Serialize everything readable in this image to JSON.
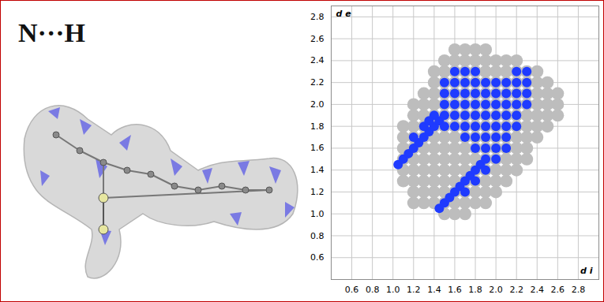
{
  "chart_data": {
    "type": "scatter",
    "title": "N···H",
    "x_label": "d i",
    "y_label": "d e",
    "xlim": [
      0.4,
      3.0
    ],
    "ylim": [
      0.4,
      2.9
    ],
    "xticks": [
      0.6,
      0.8,
      {
        "value": 1,
        "label": "1.0"
      },
      1.2,
      1.4,
      1.6,
      1.8,
      {
        "value": 2,
        "label": "2.0"
      },
      2.2,
      2.4,
      2.6,
      2.8
    ],
    "yticks": [
      0.6,
      0.8,
      {
        "value": 1,
        "label": "1.0"
      },
      1.2,
      1.4,
      1.6,
      1.8,
      {
        "value": 2,
        "label": "2.0"
      },
      2.2,
      2.4,
      2.6,
      2.8
    ],
    "grid": true,
    "series": [
      {
        "color": "#bdbdbd",
        "points": [
          [
            1.1,
            1.3
          ],
          [
            1.1,
            1.4
          ],
          [
            1.1,
            1.5
          ],
          [
            1.1,
            1.6
          ],
          [
            1.1,
            1.7
          ],
          [
            1.1,
            1.8
          ],
          [
            1.2,
            1.1
          ],
          [
            1.2,
            1.2
          ],
          [
            1.2,
            1.3
          ],
          [
            1.2,
            1.4
          ],
          [
            1.2,
            1.5
          ],
          [
            1.2,
            1.6
          ],
          [
            1.2,
            1.7
          ],
          [
            1.2,
            1.8
          ],
          [
            1.2,
            1.9
          ],
          [
            1.2,
            2.0
          ],
          [
            1.3,
            1.1
          ],
          [
            1.3,
            1.2
          ],
          [
            1.3,
            1.3
          ],
          [
            1.3,
            1.4
          ],
          [
            1.3,
            1.5
          ],
          [
            1.3,
            1.6
          ],
          [
            1.3,
            1.7
          ],
          [
            1.3,
            1.8
          ],
          [
            1.3,
            1.9
          ],
          [
            1.3,
            2.0
          ],
          [
            1.3,
            2.1
          ],
          [
            1.4,
            1.1
          ],
          [
            1.4,
            1.2
          ],
          [
            1.4,
            1.3
          ],
          [
            1.4,
            1.4
          ],
          [
            1.4,
            1.5
          ],
          [
            1.4,
            1.6
          ],
          [
            1.4,
            1.7
          ],
          [
            1.4,
            1.8
          ],
          [
            1.4,
            1.9
          ],
          [
            1.4,
            2.0
          ],
          [
            1.4,
            2.1
          ],
          [
            1.4,
            2.2
          ],
          [
            1.4,
            2.3
          ],
          [
            1.5,
            1.0
          ],
          [
            1.5,
            1.1
          ],
          [
            1.5,
            1.2
          ],
          [
            1.5,
            1.3
          ],
          [
            1.5,
            1.4
          ],
          [
            1.5,
            1.5
          ],
          [
            1.5,
            1.6
          ],
          [
            1.5,
            1.7
          ],
          [
            1.5,
            1.8
          ],
          [
            1.5,
            1.9
          ],
          [
            1.5,
            2.0
          ],
          [
            1.5,
            2.1
          ],
          [
            1.5,
            2.2
          ],
          [
            1.5,
            2.3
          ],
          [
            1.5,
            2.4
          ],
          [
            1.6,
            1.0
          ],
          [
            1.6,
            1.1
          ],
          [
            1.6,
            1.2
          ],
          [
            1.6,
            1.3
          ],
          [
            1.6,
            1.4
          ],
          [
            1.6,
            1.5
          ],
          [
            1.6,
            1.6
          ],
          [
            1.6,
            1.7
          ],
          [
            1.6,
            1.8
          ],
          [
            1.6,
            1.9
          ],
          [
            1.6,
            2.0
          ],
          [
            1.6,
            2.1
          ],
          [
            1.6,
            2.2
          ],
          [
            1.6,
            2.3
          ],
          [
            1.6,
            2.4
          ],
          [
            1.6,
            2.5
          ],
          [
            1.7,
            1.0
          ],
          [
            1.7,
            1.1
          ],
          [
            1.7,
            1.2
          ],
          [
            1.7,
            1.3
          ],
          [
            1.7,
            1.4
          ],
          [
            1.7,
            1.5
          ],
          [
            1.7,
            1.6
          ],
          [
            1.7,
            1.7
          ],
          [
            1.7,
            1.8
          ],
          [
            1.7,
            1.9
          ],
          [
            1.7,
            2.0
          ],
          [
            1.7,
            2.1
          ],
          [
            1.7,
            2.2
          ],
          [
            1.7,
            2.3
          ],
          [
            1.7,
            2.4
          ],
          [
            1.7,
            2.5
          ],
          [
            1.8,
            1.1
          ],
          [
            1.8,
            1.2
          ],
          [
            1.8,
            1.3
          ],
          [
            1.8,
            1.4
          ],
          [
            1.8,
            1.5
          ],
          [
            1.8,
            1.6
          ],
          [
            1.8,
            1.7
          ],
          [
            1.8,
            1.8
          ],
          [
            1.8,
            1.9
          ],
          [
            1.8,
            2.0
          ],
          [
            1.8,
            2.1
          ],
          [
            1.8,
            2.2
          ],
          [
            1.8,
            2.3
          ],
          [
            1.8,
            2.4
          ],
          [
            1.8,
            2.5
          ],
          [
            1.9,
            1.1
          ],
          [
            1.9,
            1.2
          ],
          [
            1.9,
            1.3
          ],
          [
            1.9,
            1.4
          ],
          [
            1.9,
            1.5
          ],
          [
            1.9,
            1.6
          ],
          [
            1.9,
            1.7
          ],
          [
            1.9,
            1.8
          ],
          [
            1.9,
            1.9
          ],
          [
            1.9,
            2.0
          ],
          [
            1.9,
            2.1
          ],
          [
            1.9,
            2.2
          ],
          [
            1.9,
            2.3
          ],
          [
            1.9,
            2.4
          ],
          [
            1.9,
            2.5
          ],
          [
            2.0,
            1.2
          ],
          [
            2.0,
            1.3
          ],
          [
            2.0,
            1.4
          ],
          [
            2.0,
            1.5
          ],
          [
            2.0,
            1.6
          ],
          [
            2.0,
            1.7
          ],
          [
            2.0,
            1.8
          ],
          [
            2.0,
            1.9
          ],
          [
            2.0,
            2.0
          ],
          [
            2.0,
            2.1
          ],
          [
            2.0,
            2.2
          ],
          [
            2.0,
            2.3
          ],
          [
            2.0,
            2.4
          ],
          [
            2.1,
            1.3
          ],
          [
            2.1,
            1.4
          ],
          [
            2.1,
            1.5
          ],
          [
            2.1,
            1.6
          ],
          [
            2.1,
            1.7
          ],
          [
            2.1,
            1.8
          ],
          [
            2.1,
            1.9
          ],
          [
            2.1,
            2.0
          ],
          [
            2.1,
            2.1
          ],
          [
            2.1,
            2.2
          ],
          [
            2.1,
            2.3
          ],
          [
            2.1,
            2.4
          ],
          [
            2.2,
            1.4
          ],
          [
            2.2,
            1.5
          ],
          [
            2.2,
            1.6
          ],
          [
            2.2,
            1.7
          ],
          [
            2.2,
            1.8
          ],
          [
            2.2,
            1.9
          ],
          [
            2.2,
            2.0
          ],
          [
            2.2,
            2.1
          ],
          [
            2.2,
            2.2
          ],
          [
            2.2,
            2.3
          ],
          [
            2.2,
            2.4
          ],
          [
            2.3,
            1.5
          ],
          [
            2.3,
            1.6
          ],
          [
            2.3,
            1.7
          ],
          [
            2.3,
            1.8
          ],
          [
            2.3,
            1.9
          ],
          [
            2.3,
            2.0
          ],
          [
            2.3,
            2.1
          ],
          [
            2.3,
            2.2
          ],
          [
            2.3,
            2.3
          ],
          [
            2.4,
            1.7
          ],
          [
            2.4,
            1.8
          ],
          [
            2.4,
            1.9
          ],
          [
            2.4,
            2.0
          ],
          [
            2.4,
            2.1
          ],
          [
            2.4,
            2.2
          ],
          [
            2.4,
            2.3
          ],
          [
            2.5,
            1.8
          ],
          [
            2.5,
            1.9
          ],
          [
            2.5,
            2.0
          ],
          [
            2.5,
            2.1
          ],
          [
            2.5,
            2.2
          ],
          [
            2.6,
            1.9
          ],
          [
            2.6,
            2.0
          ],
          [
            2.6,
            2.1
          ]
        ]
      },
      {
        "color": "#1f3bff",
        "points": [
          [
            1.05,
            1.45
          ],
          [
            1.1,
            1.5
          ],
          [
            1.15,
            1.55
          ],
          [
            1.2,
            1.6
          ],
          [
            1.25,
            1.65
          ],
          [
            1.3,
            1.7
          ],
          [
            1.35,
            1.75
          ],
          [
            1.4,
            1.8
          ],
          [
            1.45,
            1.85
          ],
          [
            1.2,
            1.7
          ],
          [
            1.3,
            1.8
          ],
          [
            1.4,
            1.9
          ],
          [
            1.35,
            1.85
          ],
          [
            1.45,
            1.05
          ],
          [
            1.5,
            1.1
          ],
          [
            1.55,
            1.15
          ],
          [
            1.6,
            1.2
          ],
          [
            1.65,
            1.25
          ],
          [
            1.7,
            1.3
          ],
          [
            1.75,
            1.35
          ],
          [
            1.8,
            1.4
          ],
          [
            1.85,
            1.45
          ],
          [
            1.9,
            1.5
          ],
          [
            1.7,
            1.2
          ],
          [
            1.8,
            1.3
          ],
          [
            1.9,
            1.4
          ],
          [
            2.0,
            1.5
          ],
          [
            2.0,
            1.6
          ],
          [
            2.1,
            1.6
          ],
          [
            2.2,
            1.8
          ],
          [
            1.5,
            1.8
          ],
          [
            1.6,
            1.8
          ],
          [
            1.5,
            1.9
          ],
          [
            1.5,
            2.0
          ],
          [
            1.5,
            2.1
          ],
          [
            1.5,
            2.2
          ],
          [
            1.6,
            1.9
          ],
          [
            1.6,
            2.0
          ],
          [
            1.6,
            2.1
          ],
          [
            1.6,
            2.2
          ],
          [
            1.6,
            2.3
          ],
          [
            1.7,
            1.7
          ],
          [
            1.7,
            1.8
          ],
          [
            1.7,
            1.9
          ],
          [
            1.7,
            2.0
          ],
          [
            1.7,
            2.1
          ],
          [
            1.7,
            2.2
          ],
          [
            1.7,
            2.3
          ],
          [
            1.8,
            1.6
          ],
          [
            1.8,
            1.7
          ],
          [
            1.8,
            1.8
          ],
          [
            1.8,
            1.9
          ],
          [
            1.8,
            2.0
          ],
          [
            1.8,
            2.1
          ],
          [
            1.8,
            2.2
          ],
          [
            1.8,
            2.3
          ],
          [
            1.9,
            1.6
          ],
          [
            1.9,
            1.7
          ],
          [
            1.9,
            1.8
          ],
          [
            1.9,
            1.9
          ],
          [
            1.9,
            2.0
          ],
          [
            1.9,
            2.1
          ],
          [
            1.9,
            2.2
          ],
          [
            2.0,
            1.7
          ],
          [
            2.0,
            1.8
          ],
          [
            2.0,
            1.9
          ],
          [
            2.0,
            2.0
          ],
          [
            2.0,
            2.1
          ],
          [
            2.0,
            2.2
          ],
          [
            2.1,
            1.7
          ],
          [
            2.1,
            1.8
          ],
          [
            2.1,
            1.9
          ],
          [
            2.1,
            2.0
          ],
          [
            2.1,
            2.1
          ],
          [
            2.1,
            2.2
          ],
          [
            2.2,
            1.9
          ],
          [
            2.2,
            2.0
          ],
          [
            2.2,
            2.1
          ],
          [
            2.2,
            2.2
          ],
          [
            2.2,
            2.3
          ],
          [
            2.3,
            2.0
          ],
          [
            2.3,
            2.1
          ],
          [
            2.3,
            2.2
          ],
          [
            2.3,
            2.3
          ]
        ]
      }
    ]
  }
}
